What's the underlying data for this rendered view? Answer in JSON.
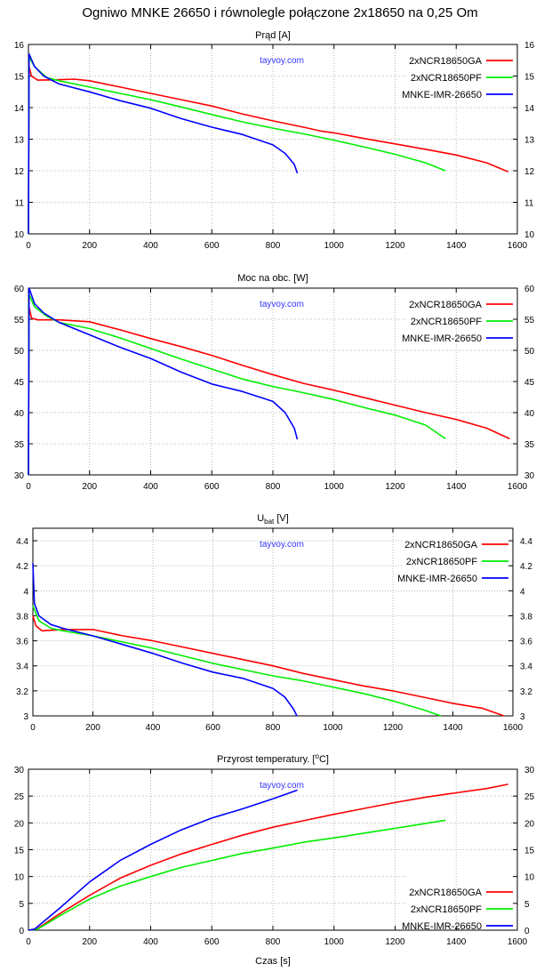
{
  "title": "Ogniwo MNKE 26650 i równolegle połączone 2x18650 na 0,25 Om",
  "watermark": "tayvoy.com",
  "colors": {
    "2xNCR18650GA": "#ff0000",
    "2xNCR18650PF": "#00ee00",
    "MNKE-IMR-26650": "#0000ff",
    "watermark": "#3333ff"
  },
  "chart_data": [
    {
      "type": "line",
      "title": {
        "main": "Prąd [A]",
        "sub": "",
        "sup": "",
        "suffix": ""
      },
      "xlabel": "",
      "xlim": [
        0,
        1600
      ],
      "ylim": [
        10,
        16
      ],
      "xticks": [
        0,
        200,
        400,
        600,
        800,
        1000,
        1200,
        1400,
        1600
      ],
      "yticks": [
        10,
        11,
        12,
        13,
        14,
        15,
        16
      ],
      "grid": true,
      "legend": "top-right",
      "series": [
        {
          "name": "2xNCR18650GA",
          "x": [
            0,
            2,
            10,
            30,
            80,
            150,
            200,
            300,
            400,
            500,
            600,
            700,
            800,
            900,
            960,
            1000,
            1100,
            1200,
            1300,
            1400,
            1500,
            1570
          ],
          "y": [
            10,
            15.3,
            15,
            14.87,
            14.88,
            14.9,
            14.85,
            14.65,
            14.45,
            14.25,
            14.05,
            13.8,
            13.58,
            13.38,
            13.25,
            13.2,
            13.02,
            12.85,
            12.68,
            12.5,
            12.25,
            11.97
          ]
        },
        {
          "name": "2xNCR18650PF",
          "x": [
            0,
            2,
            20,
            60,
            100,
            200,
            300,
            400,
            500,
            600,
            700,
            800,
            900,
            1000,
            1100,
            1200,
            1300,
            1365
          ],
          "y": [
            10,
            15.6,
            15.3,
            14.95,
            14.85,
            14.65,
            14.45,
            14.25,
            14.02,
            13.78,
            13.55,
            13.35,
            13.17,
            12.97,
            12.75,
            12.52,
            12.25,
            12.0
          ]
        },
        {
          "name": "MNKE-IMR-26650",
          "x": [
            0,
            2,
            20,
            50,
            100,
            200,
            300,
            400,
            500,
            600,
            700,
            800,
            840,
            870,
            880
          ],
          "y": [
            10,
            15.7,
            15.3,
            15.0,
            14.75,
            14.5,
            14.22,
            13.98,
            13.65,
            13.38,
            13.15,
            12.82,
            12.55,
            12.2,
            11.92
          ]
        }
      ]
    },
    {
      "type": "line",
      "title": {
        "main": "Moc na obc. [W]",
        "sub": "",
        "sup": "",
        "suffix": ""
      },
      "xlabel": "",
      "xlim": [
        0,
        1600
      ],
      "ylim": [
        30,
        60
      ],
      "xticks": [
        0,
        200,
        400,
        600,
        800,
        1000,
        1200,
        1400,
        1600
      ],
      "yticks": [
        30,
        35,
        40,
        45,
        50,
        55,
        60
      ],
      "grid": true,
      "legend": "top-right",
      "series": [
        {
          "name": "2xNCR18650GA",
          "x": [
            0,
            2,
            10,
            30,
            100,
            200,
            300,
            400,
            500,
            600,
            700,
            800,
            900,
            1000,
            1100,
            1200,
            1300,
            1400,
            1500,
            1575
          ],
          "y": [
            30,
            57,
            55.2,
            54.9,
            54.9,
            54.6,
            53.3,
            51.9,
            50.6,
            49.2,
            47.6,
            46.1,
            44.7,
            43.6,
            42.4,
            41.2,
            40.0,
            38.9,
            37.5,
            35.8
          ]
        },
        {
          "name": "2xNCR18650PF",
          "x": [
            0,
            2,
            20,
            60,
            100,
            200,
            300,
            400,
            500,
            600,
            700,
            800,
            900,
            1000,
            1100,
            1200,
            1300,
            1365
          ],
          "y": [
            30,
            59,
            57,
            55.5,
            54.5,
            53.5,
            52,
            50.3,
            48.6,
            47,
            45.4,
            44.2,
            43.2,
            42.1,
            40.8,
            39.6,
            38,
            35.8
          ]
        },
        {
          "name": "MNKE-IMR-26650",
          "x": [
            0,
            2,
            20,
            50,
            100,
            200,
            300,
            400,
            500,
            600,
            700,
            800,
            840,
            870,
            880
          ],
          "y": [
            30,
            60,
            57.5,
            56,
            54.5,
            52.5,
            50.5,
            48.7,
            46.5,
            44.6,
            43.4,
            41.8,
            40,
            37.5,
            35.7
          ]
        }
      ]
    },
    {
      "type": "line",
      "title": {
        "main": "U",
        "sub": "bat",
        "sup": "",
        "suffix": " [V]"
      },
      "xlabel": "",
      "xlim": [
        0,
        1600
      ],
      "ylim": [
        3,
        4.5
      ],
      "xticks": [
        0,
        200,
        400,
        600,
        800,
        1000,
        1200,
        1400,
        1600
      ],
      "yticks": [
        3,
        3.2,
        3.4,
        3.6,
        3.8,
        4,
        4.2,
        4.4
      ],
      "grid": true,
      "legend": "top-right",
      "series": [
        {
          "name": "2xNCR18650GA",
          "x": [
            0,
            10,
            30,
            100,
            200,
            300,
            400,
            500,
            600,
            700,
            800,
            900,
            1000,
            1100,
            1200,
            1300,
            1400,
            1500,
            1570
          ],
          "y": [
            3.8,
            3.72,
            3.68,
            3.69,
            3.69,
            3.64,
            3.6,
            3.55,
            3.5,
            3.45,
            3.4,
            3.34,
            3.29,
            3.24,
            3.2,
            3.15,
            3.1,
            3.06,
            3.0
          ]
        },
        {
          "name": "2xNCR18650PF",
          "x": [
            0,
            20,
            60,
            100,
            200,
            300,
            400,
            500,
            600,
            700,
            800,
            900,
            1000,
            1100,
            1200,
            1300,
            1360
          ],
          "y": [
            3.88,
            3.76,
            3.7,
            3.68,
            3.64,
            3.59,
            3.54,
            3.48,
            3.42,
            3.37,
            3.32,
            3.28,
            3.23,
            3.18,
            3.12,
            3.05,
            3.0
          ]
        },
        {
          "name": "MNKE-IMR-26650",
          "x": [
            0,
            5,
            20,
            60,
            100,
            200,
            300,
            400,
            500,
            600,
            700,
            800,
            840,
            870,
            880
          ],
          "y": [
            4.22,
            3.9,
            3.8,
            3.73,
            3.7,
            3.64,
            3.57,
            3.5,
            3.42,
            3.35,
            3.3,
            3.22,
            3.15,
            3.05,
            3.0
          ]
        }
      ]
    },
    {
      "type": "line",
      "title": {
        "main": "Przyrost temperatury. [",
        "sub": "",
        "sup": "o",
        "suffix": "C]"
      },
      "xlabel": "Czas [s]",
      "xlim": [
        0,
        1600
      ],
      "ylim": [
        0,
        30
      ],
      "xticks": [
        0,
        200,
        400,
        600,
        800,
        1000,
        1200,
        1400,
        1600
      ],
      "yticks": [
        0,
        5,
        10,
        15,
        20,
        25,
        30
      ],
      "grid": true,
      "legend": "bottom-right",
      "series": [
        {
          "name": "2xNCR18650GA",
          "x": [
            0,
            30,
            100,
            200,
            300,
            400,
            500,
            600,
            700,
            800,
            900,
            1000,
            1100,
            1200,
            1300,
            1400,
            1500,
            1570
          ],
          "y": [
            0,
            0.3,
            3,
            6.5,
            9.7,
            12.1,
            14.2,
            16,
            17.7,
            19.2,
            20.4,
            21.6,
            22.7,
            23.8,
            24.8,
            25.6,
            26.4,
            27.2
          ]
        },
        {
          "name": "2xNCR18650PF",
          "x": [
            0,
            30,
            100,
            200,
            300,
            400,
            500,
            600,
            700,
            800,
            900,
            1000,
            1100,
            1200,
            1300,
            1365
          ],
          "y": [
            0,
            0.2,
            2.6,
            5.8,
            8.2,
            10,
            11.7,
            13,
            14.3,
            15.3,
            16.4,
            17.2,
            18.1,
            19,
            19.9,
            20.5
          ]
        },
        {
          "name": "MNKE-IMR-26650",
          "x": [
            0,
            20,
            100,
            200,
            300,
            400,
            500,
            600,
            700,
            800,
            880
          ],
          "y": [
            0,
            0.2,
            4,
            9,
            13,
            16,
            18.7,
            20.9,
            22.6,
            24.5,
            26.1
          ]
        }
      ]
    }
  ]
}
